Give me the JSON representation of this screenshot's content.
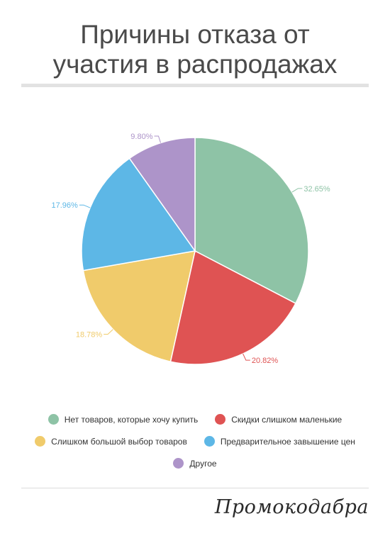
{
  "header": {
    "title_line1": "Причины отказа от",
    "title_line2": "участия в распродажах"
  },
  "chart_data": {
    "type": "pie",
    "title": "Причины отказа от участия в распродажах",
    "slices": [
      {
        "label": "Нет товаров, которые хочу купить",
        "value": 32.65,
        "display": "32.65%",
        "color": "#8ec3a6"
      },
      {
        "label": "Скидки слишком маленькие",
        "value": 20.82,
        "display": "20.82%",
        "color": "#df5353"
      },
      {
        "label": "Слишком большой выбор товаров",
        "value": 18.78,
        "display": "18.78%",
        "color": "#f0cb6b"
      },
      {
        "label": "Предварительное завышение цен",
        "value": 17.96,
        "display": "17.96%",
        "color": "#5db7e6"
      },
      {
        "label": "Другое",
        "value": 9.8,
        "display": "9.80%",
        "color": "#ad94c9"
      }
    ],
    "start_angle": "12 o'clock",
    "direction": "clockwise",
    "legend_position": "bottom"
  },
  "footer": {
    "brand": "Промокодабра"
  }
}
